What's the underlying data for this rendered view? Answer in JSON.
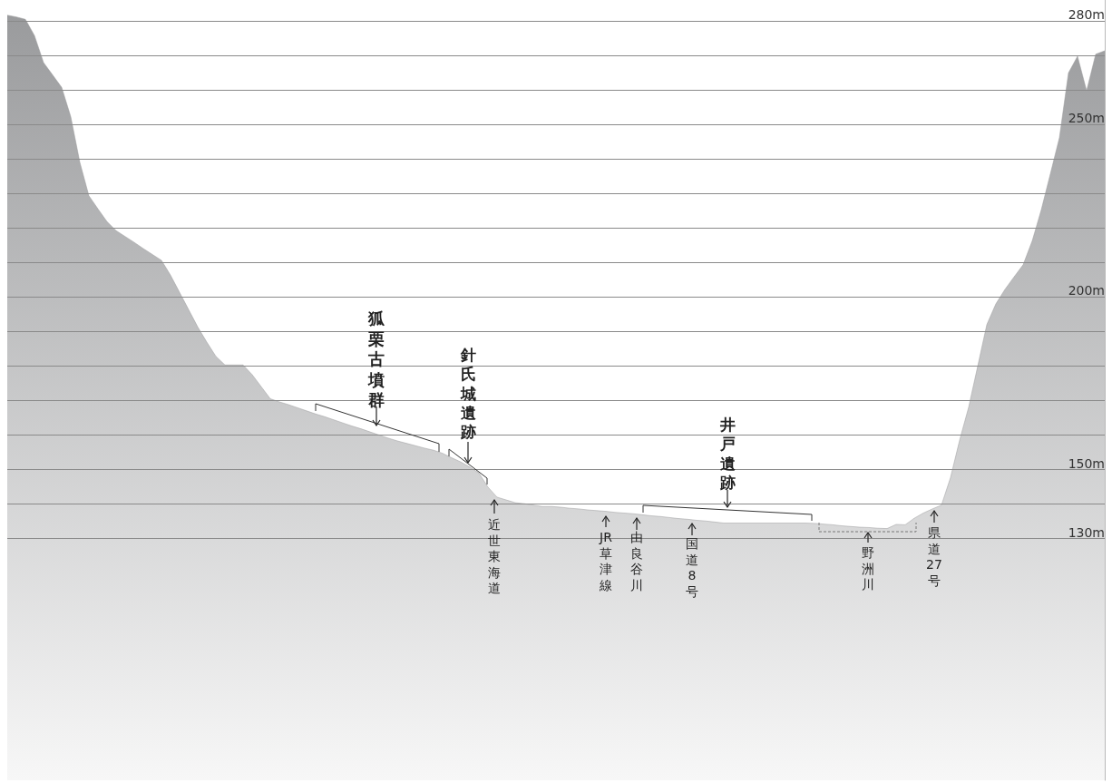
{
  "chart_data": {
    "type": "area",
    "categories": [
      null,
      null,
      null,
      null,
      null,
      null,
      null,
      null,
      null,
      null,
      null,
      null,
      null,
      null,
      null,
      null,
      null,
      null,
      null,
      null,
      null,
      null,
      null,
      null,
      null,
      null,
      null,
      null,
      null,
      null,
      null,
      null,
      null,
      null,
      null,
      null,
      null,
      null,
      null,
      null,
      null,
      null,
      null,
      null,
      null,
      null,
      null,
      null,
      null,
      null,
      null,
      null,
      null,
      null,
      null,
      null,
      null,
      null,
      null,
      null,
      null,
      null,
      null,
      null,
      null,
      null,
      null,
      null,
      null,
      null,
      null,
      null,
      null,
      null,
      null,
      null,
      null,
      null,
      null,
      null,
      null,
      null,
      null,
      null,
      null,
      null,
      null,
      null,
      null,
      null,
      null,
      null,
      null,
      null,
      null,
      null,
      null,
      null,
      null,
      null,
      null,
      null,
      null,
      null,
      null,
      null,
      null,
      null,
      null,
      null,
      null,
      null,
      null,
      null,
      null,
      null,
      null,
      null,
      null,
      null,
      null,
      null
    ],
    "series": [
      {
        "color": "#9a9b9d",
        "values": [
          281.6,
          281.1,
          280.4,
          275.7,
          267.9,
          264.3,
          260.7,
          252.2,
          239.0,
          229.3,
          225.5,
          221.8,
          219.2,
          217.5,
          215.8,
          214.0,
          212.3,
          210.6,
          206.3,
          201.3,
          196.3,
          191.3,
          186.9,
          182.8,
          180.3,
          180.3,
          180.3,
          177.5,
          174.0,
          170.5,
          169.6,
          168.8,
          167.9,
          167.0,
          166.1,
          165.3,
          164.4,
          163.5,
          162.6,
          161.8,
          160.9,
          160.0,
          159.1,
          158.3,
          157.6,
          156.9,
          156.2,
          155.6,
          154.7,
          153.4,
          152.2,
          150.7,
          149.0,
          144.9,
          142.0,
          141.2,
          140.4,
          140.1,
          139.7,
          139.3,
          139.3,
          139.1,
          138.8,
          138.6,
          138.3,
          138.1,
          137.9,
          137.6,
          137.4,
          137.2,
          136.9,
          136.6,
          136.4,
          136.1,
          135.8,
          135.6,
          135.3,
          135.1,
          134.8,
          134.5,
          134.5,
          134.5,
          134.5,
          134.5,
          134.5,
          134.5,
          134.5,
          134.5,
          134.5,
          134.4,
          134.2,
          134.0,
          133.7,
          133.5,
          133.3,
          133.2,
          133.0,
          132.9,
          134.1,
          134.0,
          135.9,
          137.4,
          138.6,
          139.7,
          147.7,
          158.5,
          168.1,
          180.0,
          192.0,
          198.0,
          202.2,
          205.8,
          209.3,
          216.2,
          225.2,
          235.6,
          246.1,
          264.9,
          269.7,
          259.7,
          270.3,
          271.3
        ]
      }
    ],
    "ylim": [
      60,
      286
    ],
    "yticks": [
      {
        "value": 130,
        "label": "130m"
      },
      {
        "value": 140,
        "label": null
      },
      {
        "value": 150,
        "label": "150m"
      },
      {
        "value": 160,
        "label": null
      },
      {
        "value": 170,
        "label": null
      },
      {
        "value": 180,
        "label": null
      },
      {
        "value": 190,
        "label": null
      },
      {
        "value": 200,
        "label": "200m"
      },
      {
        "value": 210,
        "label": null
      },
      {
        "value": 220,
        "label": null
      },
      {
        "value": 230,
        "label": null
      },
      {
        "value": 240,
        "label": null
      },
      {
        "value": 250,
        "label": "250m"
      },
      {
        "value": 260,
        "label": null
      },
      {
        "value": 270,
        "label": null
      },
      {
        "value": 280,
        "label": "280m"
      }
    ],
    "grid": "y",
    "tick_labels": "y",
    "marker": "none",
    "annotations": [
      "狐栗古墳群",
      "針氏城遺跡",
      "井戸遺跡",
      "近世東海道",
      "JR草津線",
      "由良谷川",
      "国道8号",
      "野洲川",
      "県道27号"
    ]
  }
}
